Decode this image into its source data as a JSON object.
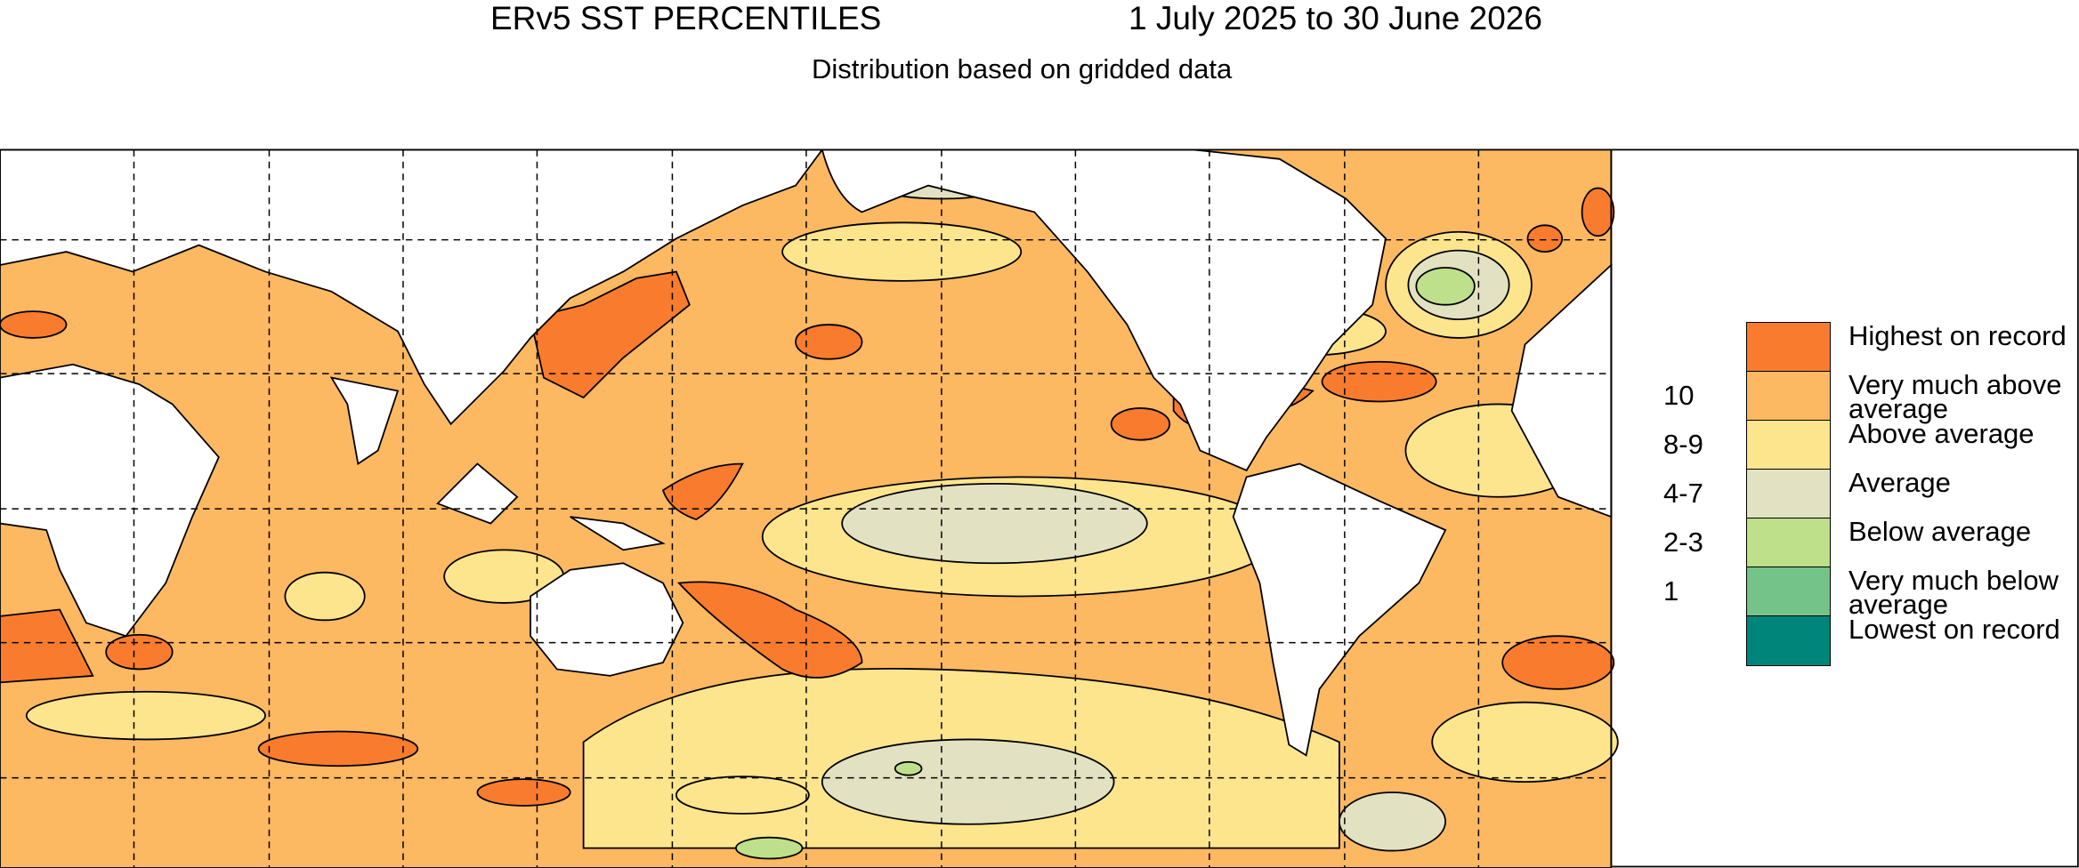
{
  "header": {
    "title": "ERv5 SST PERCENTILES",
    "period": "1 July 2025 to 30 June 2026",
    "subtitle": "Distribution based on gridded data"
  },
  "legend": {
    "items": [
      {
        "label": "Highest on record",
        "color": "#f97c2e",
        "rank": null
      },
      {
        "label": "Very much above average",
        "color": "#fdb862",
        "rank": "10"
      },
      {
        "label": "Above average",
        "color": "#fde58e",
        "rank": "8-9"
      },
      {
        "label": "Average",
        "color": "#e2e2c2",
        "rank": "4-7"
      },
      {
        "label": "Below average",
        "color": "#bfe08a",
        "rank": "2-3"
      },
      {
        "label": "Very much below average",
        "color": "#74c48a",
        "rank": "1"
      },
      {
        "label": "Lowest on record",
        "color": "#00857b",
        "rank": null
      }
    ]
  }
}
